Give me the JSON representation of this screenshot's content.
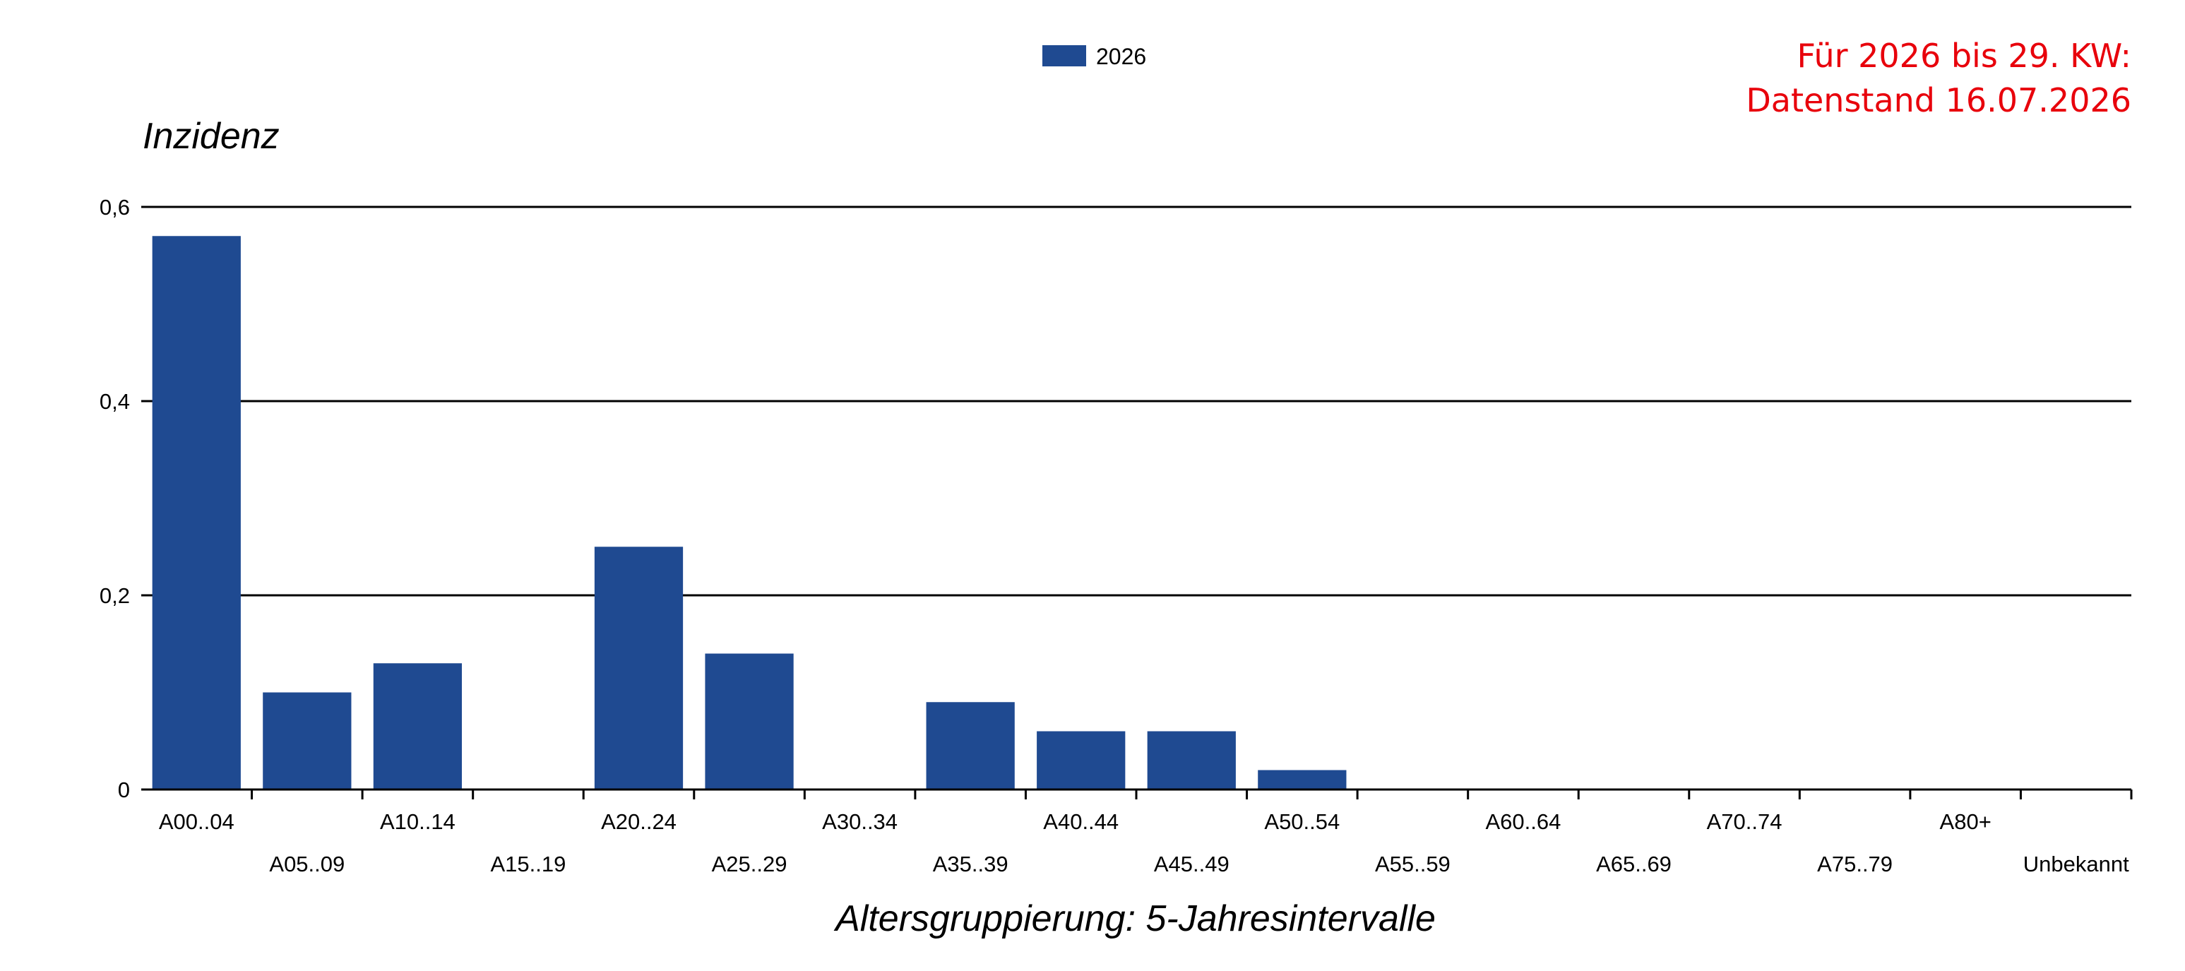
{
  "chart_data": {
    "type": "bar",
    "title": "",
    "xlabel": "Altersgruppierung: 5-Jahresintervalle",
    "ylabel": "Inzidenz",
    "ylim": [
      0,
      0.6
    ],
    "yticks": [
      0,
      0.2,
      0.4,
      0.6
    ],
    "ytick_labels": [
      "0",
      "0,2",
      "0,4",
      "0,6"
    ],
    "grid": true,
    "legend_position": "top-center",
    "categories": [
      "A00..04",
      "A05..09",
      "A10..14",
      "A15..19",
      "A20..24",
      "A25..29",
      "A30..34",
      "A35..39",
      "A40..44",
      "A45..49",
      "A50..54",
      "A55..59",
      "A60..64",
      "A65..69",
      "A70..74",
      "A75..79",
      "A80+",
      "Unbekannt"
    ],
    "series": [
      {
        "name": "2026",
        "color": "#1f4a91",
        "values": [
          0.57,
          0.1,
          0.13,
          0,
          0.25,
          0.14,
          0,
          0.09,
          0.06,
          0.06,
          0.02,
          0,
          0,
          0,
          0,
          0,
          0,
          0
        ]
      }
    ],
    "annotation": {
      "line1": "Für 2026 bis 29. KW:",
      "line2": "Datenstand 16.07.2026",
      "color": "#e8000b"
    }
  }
}
